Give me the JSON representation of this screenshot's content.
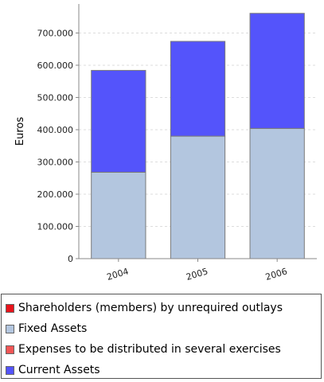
{
  "chart_data": {
    "type": "bar",
    "stacked": true,
    "categories": [
      "2004",
      "2005",
      "2006"
    ],
    "series": [
      {
        "name": "Shareholders (members) by unrequired outlays",
        "color": "#e8141c",
        "values": [
          0,
          0,
          0
        ]
      },
      {
        "name": "Fixed Assets",
        "color": "#b3c6df",
        "values": [
          268000,
          380000,
          404000
        ]
      },
      {
        "name": "Expenses to be distributed in several exercises",
        "color": "#f15656",
        "values": [
          0,
          0,
          0
        ]
      },
      {
        "name": "Current Assets",
        "color": "#5454fb",
        "values": [
          316000,
          294000,
          357000
        ]
      }
    ],
    "ylabel": "Euros",
    "xlabel": "",
    "ylim": [
      0,
      790000
    ],
    "yticks": [
      "0",
      "100.000",
      "200.000",
      "300.000",
      "400.000",
      "500.000",
      "600.000",
      "700.000"
    ],
    "grid": true,
    "legend_position": "bottom"
  }
}
